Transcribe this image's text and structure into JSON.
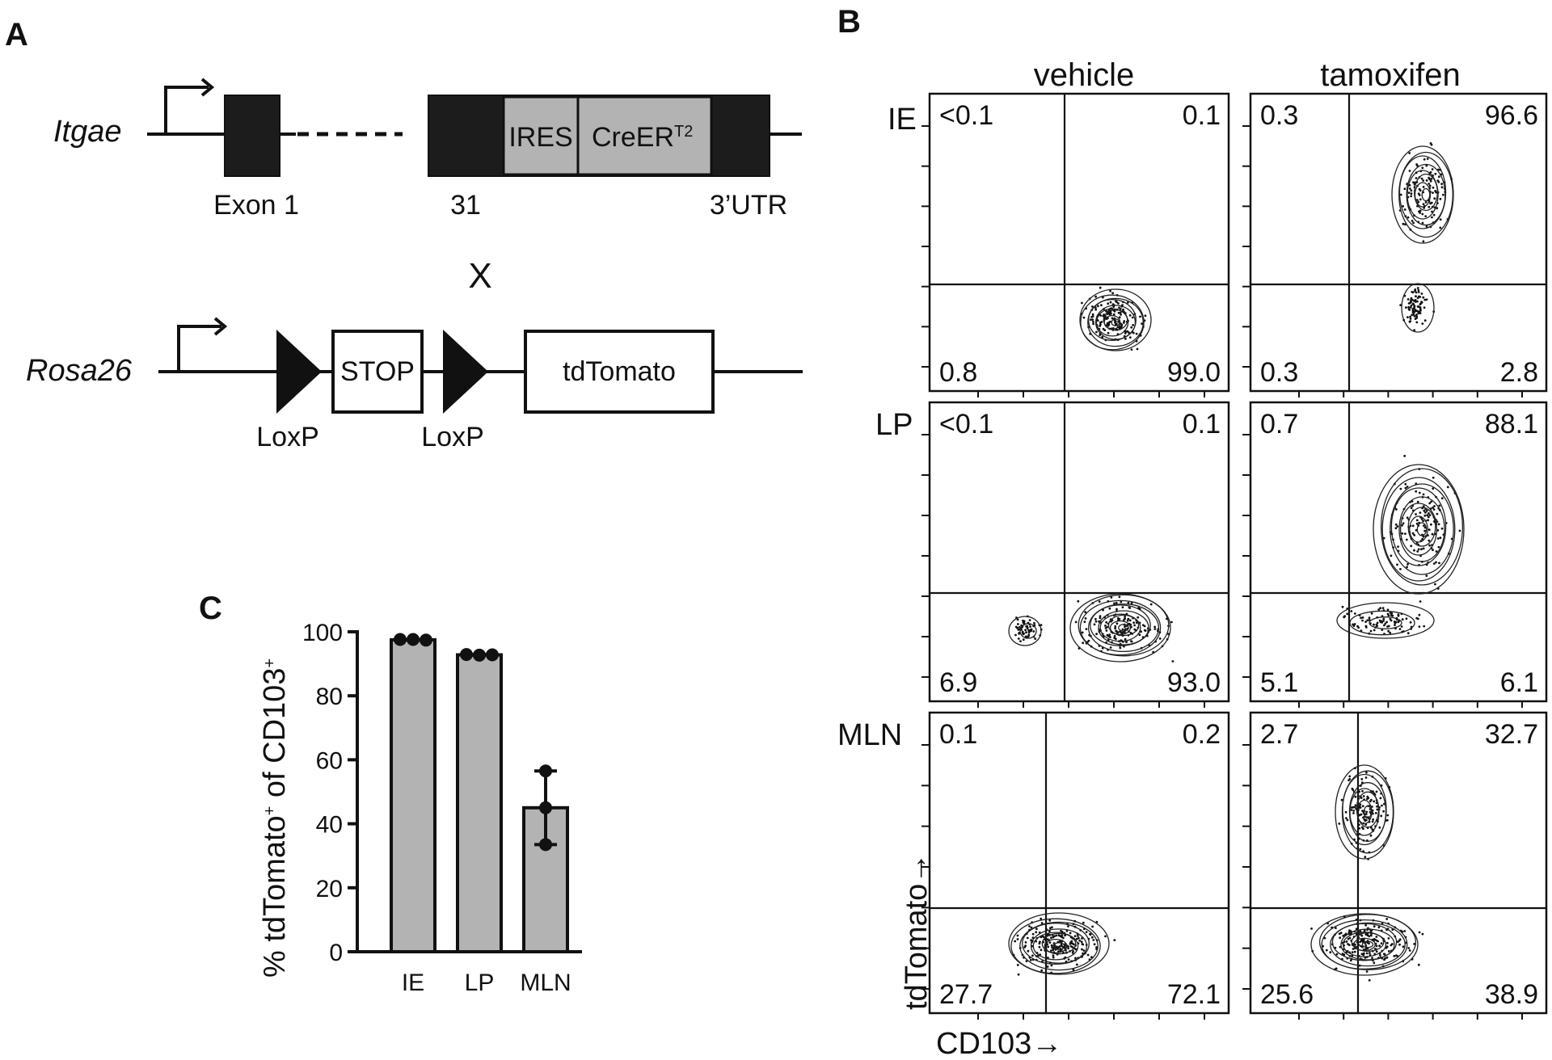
{
  "panel_a": {
    "letter": "A",
    "construct1": {
      "gene": "Itgae",
      "segments": {
        "ires": "IRES",
        "cre": "CreER",
        "cre_sup": "T2"
      },
      "labels": {
        "exon1": "Exon 1",
        "exon31": "31",
        "utr": "3’UTR"
      }
    },
    "cross": "X",
    "construct2": {
      "gene": "Rosa26",
      "stop": "STOP",
      "reporter": "tdTomato",
      "loxp1": "LoxP",
      "loxp2": "LoxP"
    }
  },
  "panel_b": {
    "letter": "B",
    "col_titles": [
      "vehicle",
      "tamoxifen"
    ],
    "row_titles": [
      "IE",
      "LP",
      "MLN"
    ],
    "x_axis_title": "CD103→",
    "y_axis_title": "tdTomato→",
    "plots": [
      {
        "row": "IE",
        "col": "vehicle",
        "tl": "<0.1",
        "tr": "0.1",
        "bl": "0.8",
        "br": "99.0"
      },
      {
        "row": "IE",
        "col": "tamoxifen",
        "tl": "0.3",
        "tr": "96.6",
        "bl": "0.3",
        "br": "2.8"
      },
      {
        "row": "LP",
        "col": "vehicle",
        "tl": "<0.1",
        "tr": "0.1",
        "bl": "6.9",
        "br": "93.0"
      },
      {
        "row": "LP",
        "col": "tamoxifen",
        "tl": "0.7",
        "tr": "88.1",
        "bl": "5.1",
        "br": "6.1"
      },
      {
        "row": "MLN",
        "col": "vehicle",
        "tl": "0.1",
        "tr": "0.2",
        "bl": "27.7",
        "br": "72.1"
      },
      {
        "row": "MLN",
        "col": "tamoxifen",
        "tl": "2.7",
        "tr": "32.7",
        "bl": "25.6",
        "br": "38.9"
      }
    ]
  },
  "panel_c": {
    "letter": "C",
    "chart_data": {
      "type": "bar",
      "categories": [
        "IE",
        "LP",
        "MLN"
      ],
      "values": [
        97.5,
        92.8,
        45.0
      ],
      "points": [
        [
          97.6,
          97.6,
          97.4
        ],
        [
          92.9,
          92.7,
          92.8
        ],
        [
          56.5,
          45.0,
          33.5
        ]
      ],
      "error": [
        [
          97.4,
          97.6
        ],
        [
          92.7,
          92.9
        ],
        [
          33.5,
          56.5
        ]
      ],
      "ylabel": "% tdTomato+ of CD103+",
      "ylabel_main": "% tdTomato",
      "ylabel_sup1": "+",
      "ylabel_mid": " of CD103",
      "ylabel_sup2": "+",
      "ylim": [
        0,
        100
      ],
      "yticks": [
        "0",
        "20",
        "40",
        "60",
        "80",
        "100"
      ],
      "grid": false,
      "colors": {
        "bar": "#b3b3b3",
        "edge": "#111111"
      }
    }
  }
}
